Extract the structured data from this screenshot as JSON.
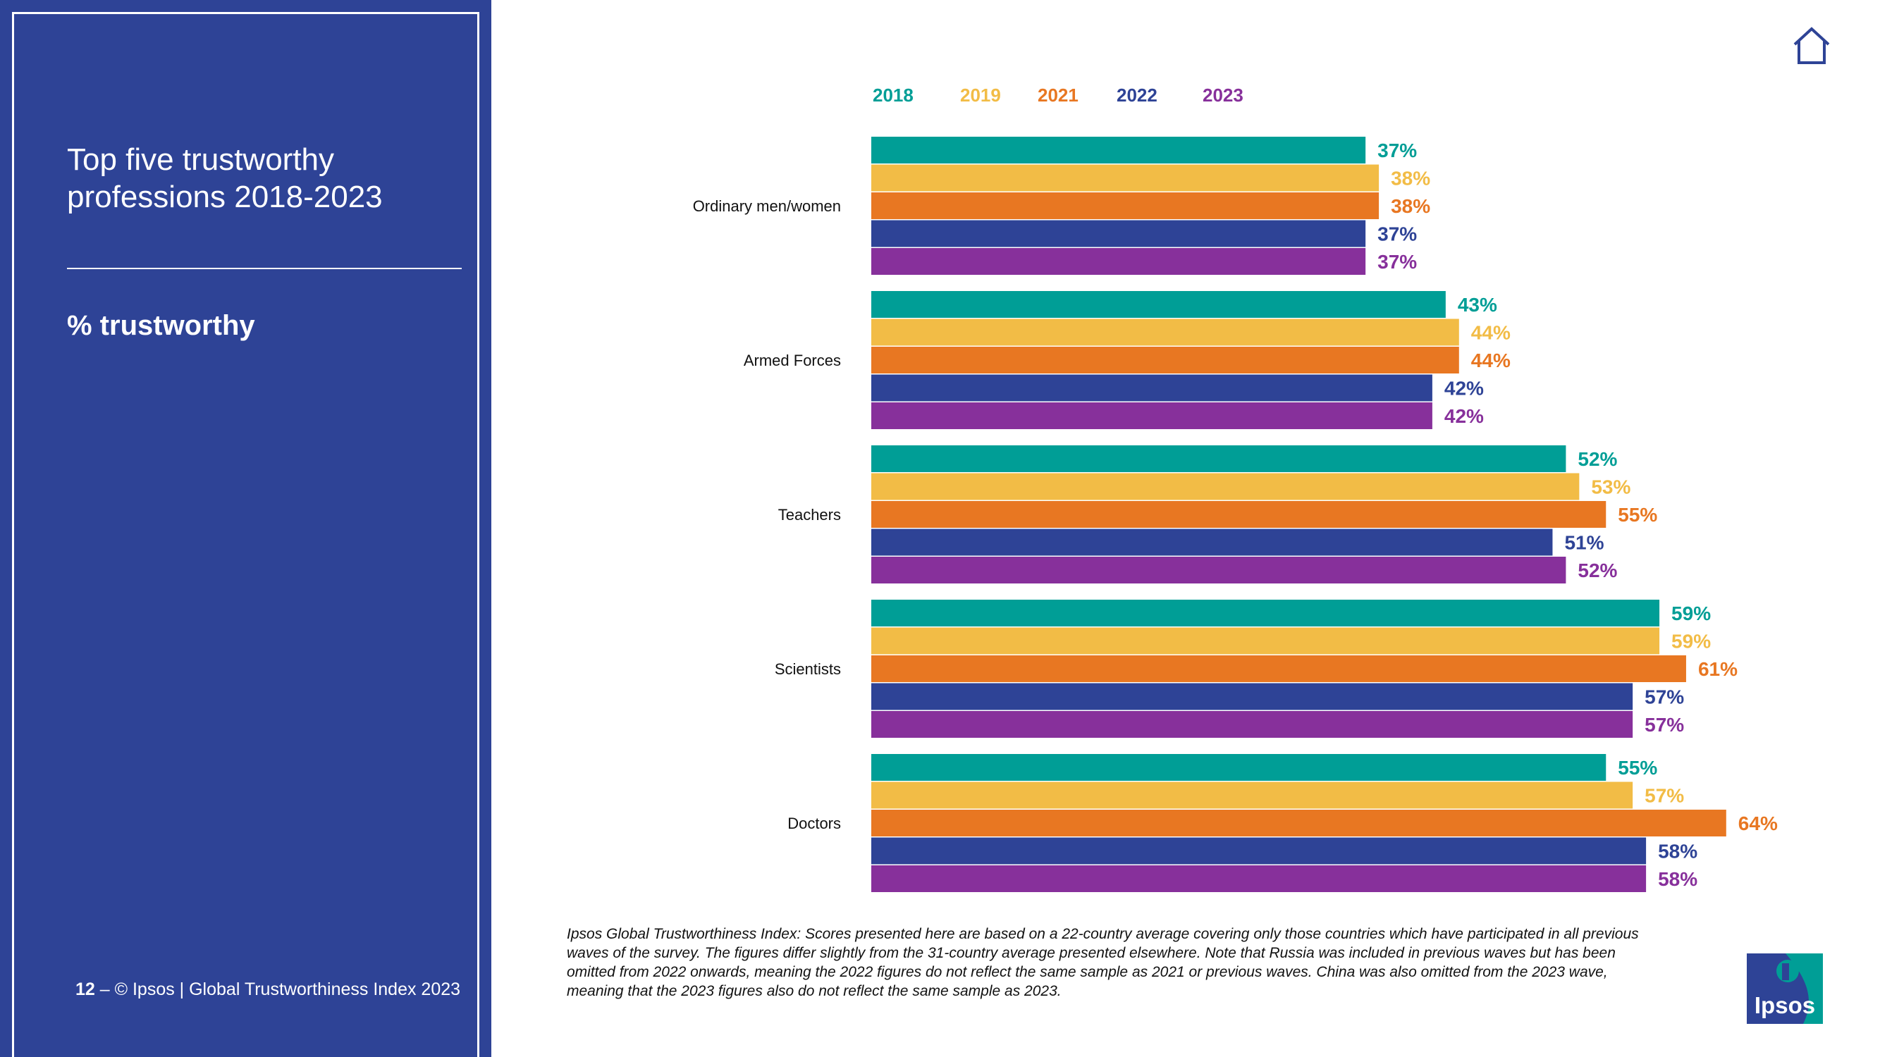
{
  "slide": {
    "title": "Top five trustworthy professions 2018-2023",
    "subtitle": "% trustworthy",
    "footer_page": "12",
    "footer_text": " – © Ipsos | Global Trustworthiness Index 2023",
    "footnote": "Ipsos Global Trustworthiness Index: Scores presented here are based on a 22-country average covering only those countries which have participated in all previous waves of the survey. The figures differ slightly from the 31-country average presented elsewhere. Note that Russia was included in previous waves but has been omitted from 2022 onwards, meaning the 2022 figures do not reflect the same sample as 2021 or previous waves. China was also omitted from the 2023 wave, meaning that the 2023 figures also do not reflect the same sample as 2023.",
    "logo_text": "Ipsos",
    "home_icon": "home-icon",
    "colors": {
      "sidebar": "#2e4396",
      "accent": "#ffffff"
    }
  },
  "chart_data": {
    "type": "bar",
    "orientation": "horizontal",
    "title": "Top five trustworthy professions 2018-2023",
    "ylabel": "% trustworthy",
    "xlim": [
      0,
      70
    ],
    "legend_position": "top",
    "value_suffix": "%",
    "categories": [
      "Ordinary men/women",
      "Armed Forces",
      "Teachers",
      "Scientists",
      "Doctors"
    ],
    "series": [
      {
        "name": "2018",
        "color": "#009e96",
        "values": [
          37,
          43,
          52,
          59,
          55
        ]
      },
      {
        "name": "2019",
        "color": "#f2bc46",
        "values": [
          38,
          44,
          53,
          59,
          57
        ]
      },
      {
        "name": "2021",
        "color": "#e87722",
        "values": [
          38,
          44,
          55,
          61,
          64
        ]
      },
      {
        "name": "2022",
        "color": "#2e4396",
        "values": [
          37,
          42,
          51,
          57,
          58
        ]
      },
      {
        "name": "2023",
        "color": "#87309b",
        "values": [
          37,
          42,
          52,
          57,
          58
        ]
      }
    ]
  }
}
